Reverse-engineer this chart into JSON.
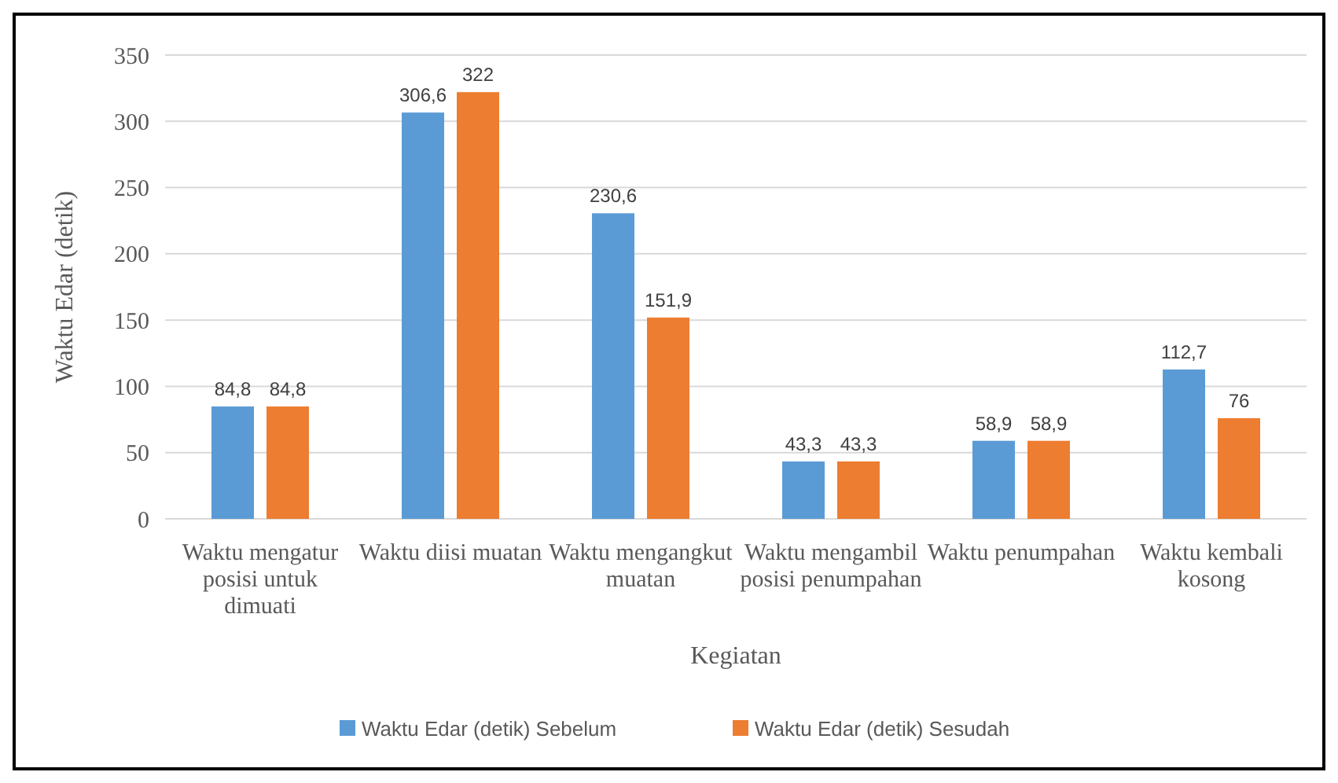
{
  "chart_data": {
    "type": "bar",
    "xlabel": "Kegiatan",
    "ylabel": "Waktu Edar (detik)",
    "categories": [
      "Waktu mengatur posisi untuk dimuati",
      "Waktu diisi muatan",
      "Waktu mengangkut muatan",
      "Waktu mengambil posisi penumpahan",
      "Waktu penumpahan",
      "Waktu kembali kosong"
    ],
    "series": [
      {
        "name": "Waktu Edar (detik) Sebelum",
        "color": "#5b9bd5",
        "values": [
          84.8,
          306.6,
          230.6,
          43.3,
          58.9,
          112.7
        ],
        "value_labels": [
          "84,8",
          "306,6",
          "230,6",
          "43,3",
          "58,9",
          "112,7"
        ]
      },
      {
        "name": "Waktu Edar (detik) Sesudah",
        "color": "#ed7d31",
        "values": [
          84.8,
          322,
          151.9,
          43.3,
          58.9,
          76
        ],
        "value_labels": [
          "84,8",
          "322",
          "151,9",
          "43,3",
          "58,9",
          "76"
        ]
      }
    ],
    "ylim": [
      0,
      350
    ],
    "yticks": [
      0,
      50,
      100,
      150,
      200,
      250,
      300,
      350
    ],
    "grid": "y",
    "legend": "bottom"
  }
}
